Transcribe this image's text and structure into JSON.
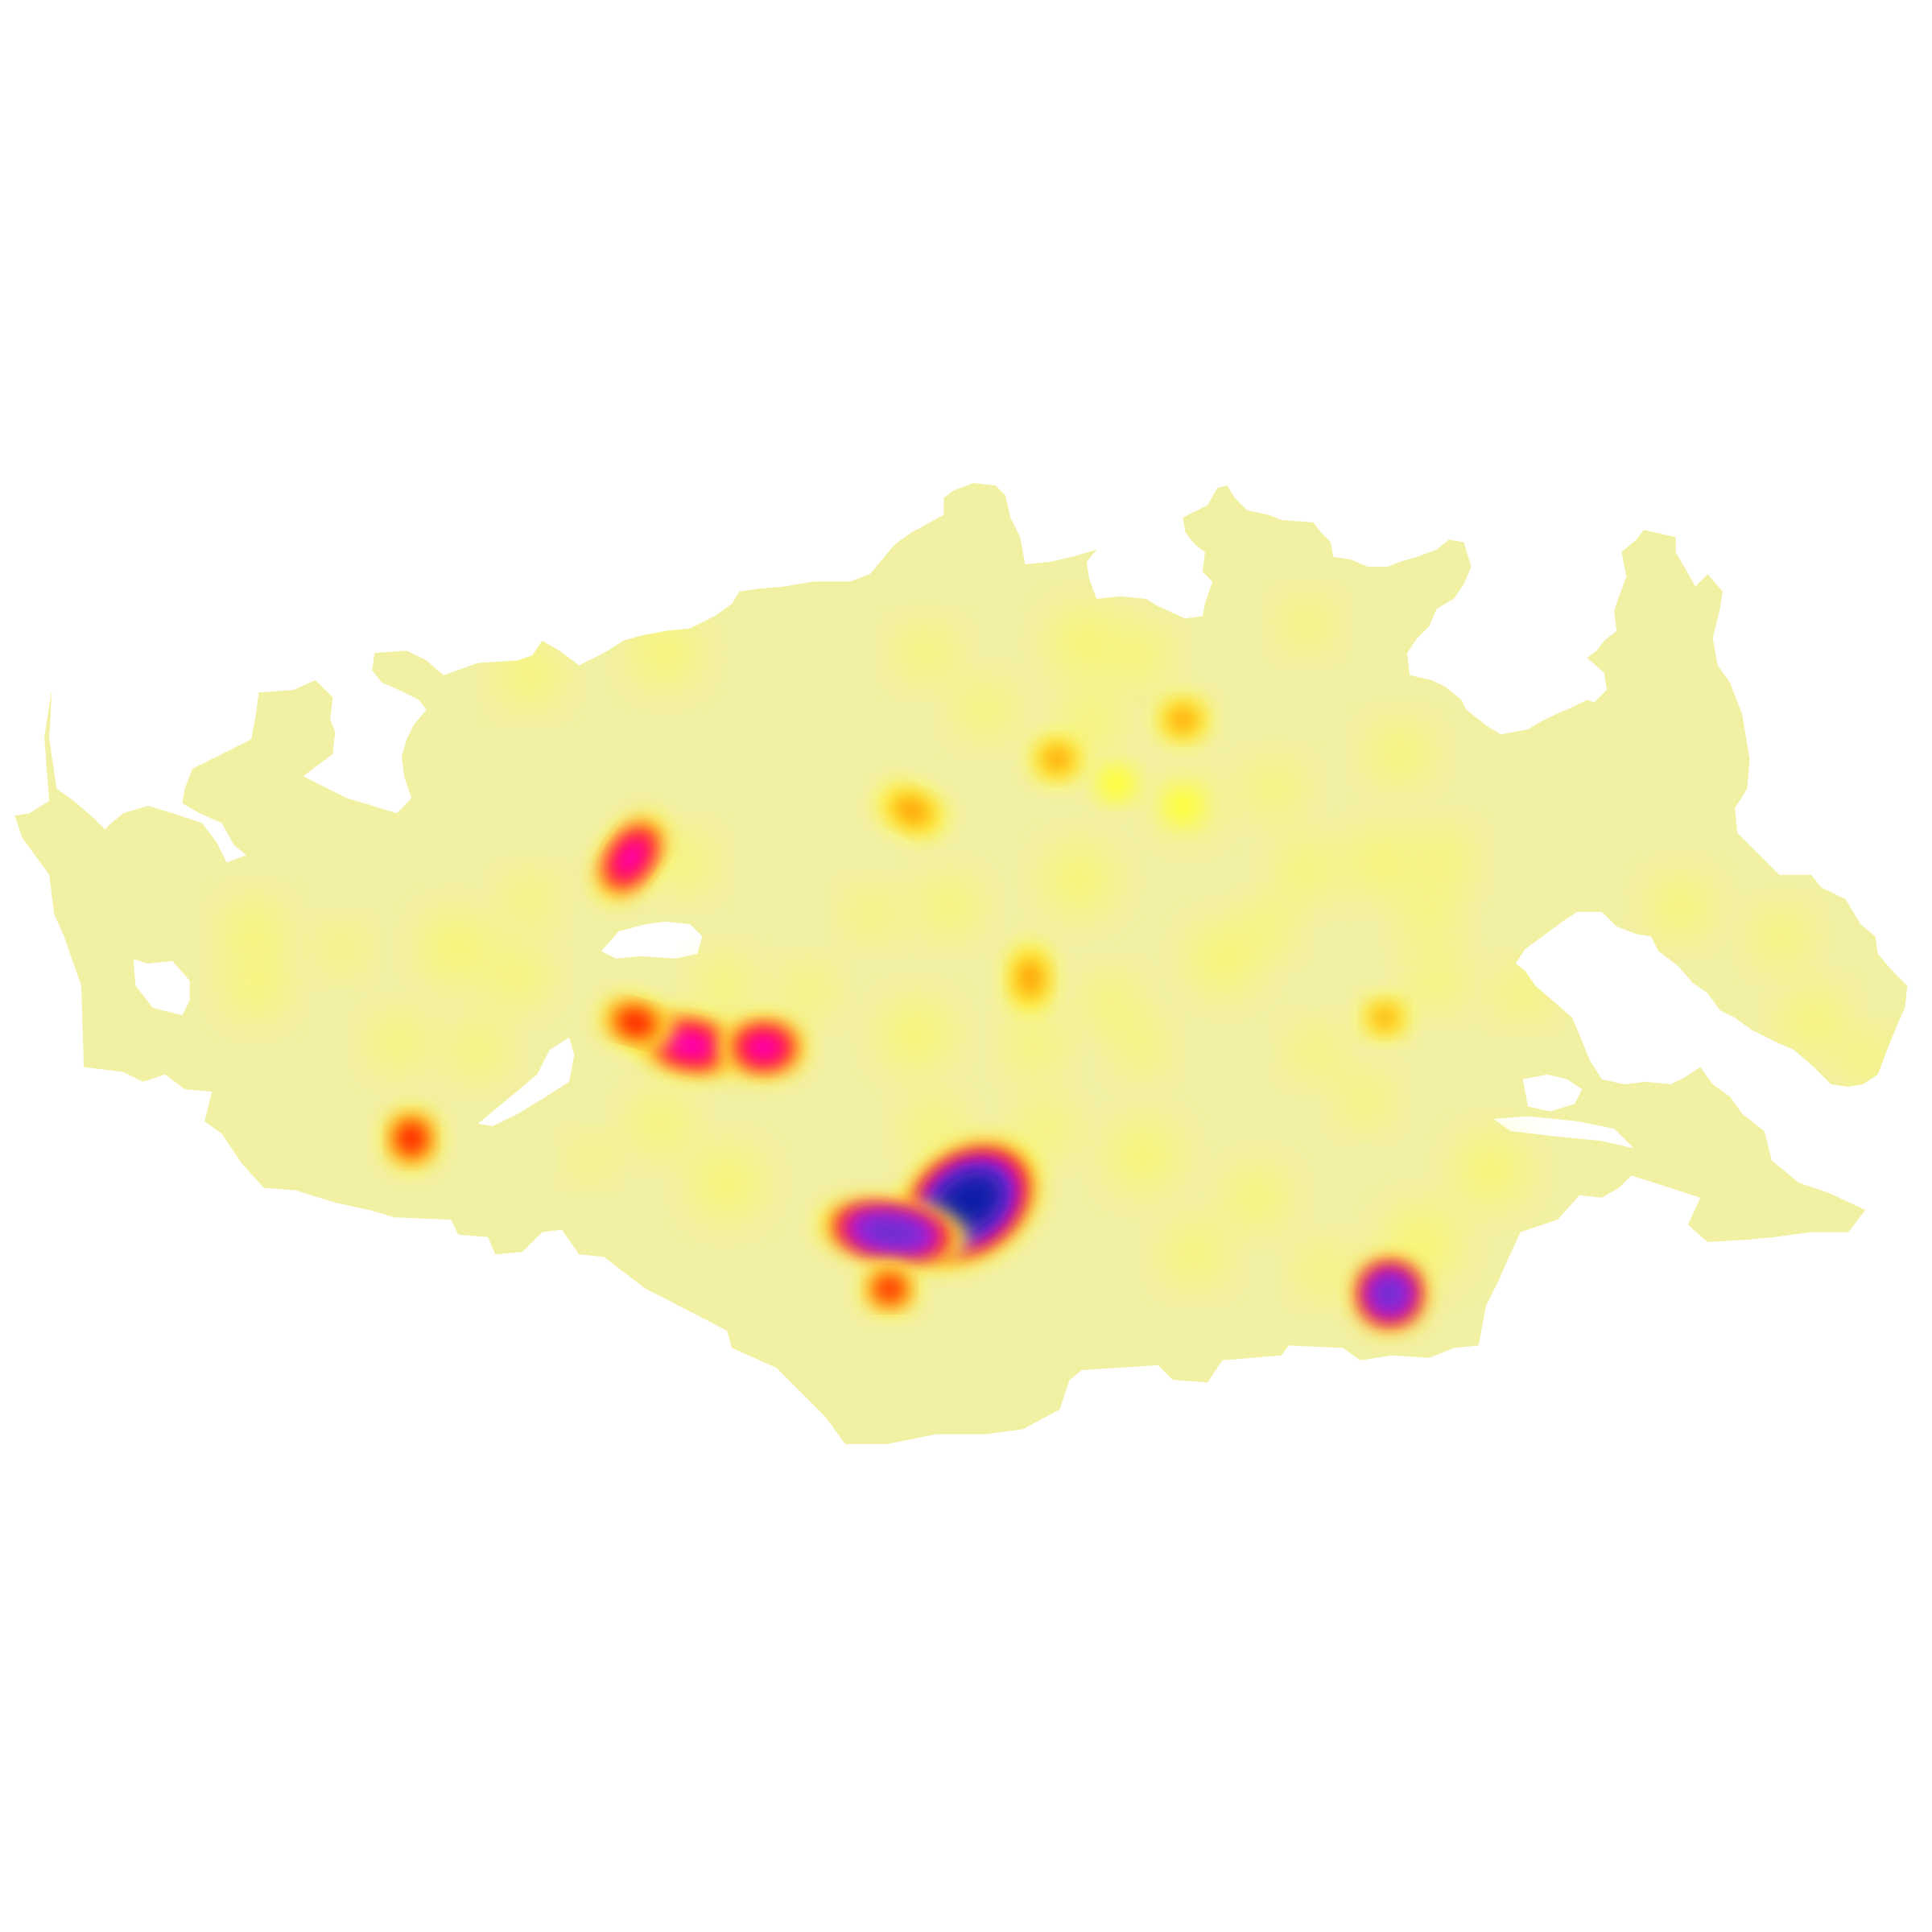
{
  "map": {
    "type": "heatmap-density",
    "background_color": "#ffffff",
    "region_fill_color": "#f2f0a3",
    "color_ramp": [
      "#f2f0a3",
      "#fbfb62",
      "#ffff2e",
      "#ff9000",
      "#ff0000",
      "#ff00cc",
      "#a020f0",
      "#6633cc",
      "#0a1aa8"
    ],
    "hotspots": [
      {
        "id": "h1",
        "name": "south-central-cluster",
        "intensity": 1.0
      },
      {
        "id": "h2",
        "name": "south-central-arm",
        "intensity": 0.85
      },
      {
        "id": "h3",
        "name": "southeast-point",
        "intensity": 0.85
      },
      {
        "id": "h4",
        "name": "west-chain-center",
        "intensity": 0.65
      },
      {
        "id": "h5",
        "name": "west-chain-east",
        "intensity": 0.62
      },
      {
        "id": "h6",
        "name": "west-chain-west",
        "intensity": 0.55
      },
      {
        "id": "h7",
        "name": "northwest-lobe",
        "intensity": 0.62
      },
      {
        "id": "h8",
        "name": "south-minor-point",
        "intensity": 0.5
      },
      {
        "id": "h9",
        "name": "west-coast-point",
        "intensity": 0.45
      },
      {
        "id": "h10",
        "name": "north-central-point",
        "intensity": 0.42
      },
      {
        "id": "h11",
        "name": "central-point",
        "intensity": 0.42
      },
      {
        "id": "h12",
        "name": "north-point-a",
        "intensity": 0.38
      },
      {
        "id": "h13",
        "name": "north-point-b",
        "intensity": 0.35
      },
      {
        "id": "h14",
        "name": "north-point-c",
        "intensity": 0.3
      },
      {
        "id": "h15",
        "name": "east-central-point",
        "intensity": 0.32
      },
      {
        "id": "h16",
        "name": "north-point-d",
        "intensity": 0.25
      }
    ]
  }
}
